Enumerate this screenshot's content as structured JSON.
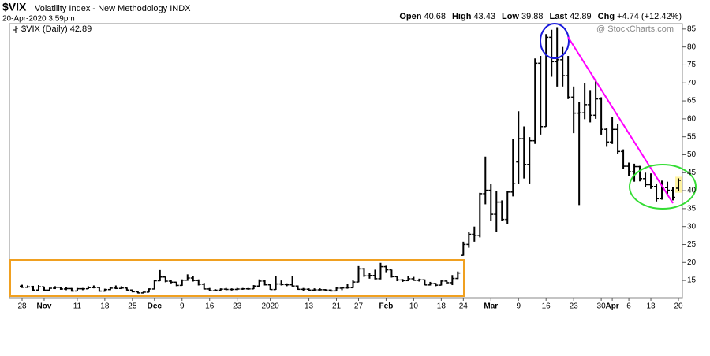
{
  "chart_data": {
    "type": "ohlc",
    "symbol": "$VIX",
    "title": "Volatility Index - New Methodology INDX",
    "date": "20-Apr-2020 3:59pm",
    "quote": [
      {
        "label": "Open",
        "value": "40.68"
      },
      {
        "label": "High",
        "value": "43.43"
      },
      {
        "label": "Low",
        "value": "39.88"
      },
      {
        "label": "Last",
        "value": "42.89"
      },
      {
        "label": "Chg",
        "value": "+4.74 (+12.42%)"
      }
    ],
    "legend": "$VIX (Daily) 42.89",
    "watermark": "@ StockCharts.com",
    "color": "#000000",
    "categories": [
      "28",
      null,
      null,
      null,
      "Nov",
      null,
      null,
      null,
      null,
      null,
      "11",
      null,
      null,
      null,
      null,
      "18",
      null,
      null,
      null,
      null,
      "25",
      null,
      null,
      null,
      "Dec",
      null,
      null,
      null,
      null,
      "9",
      null,
      null,
      null,
      null,
      "16",
      null,
      null,
      null,
      null,
      "23",
      null,
      null,
      null,
      null,
      null,
      "2020",
      null,
      null,
      null,
      null,
      null,
      null,
      "13",
      null,
      null,
      null,
      null,
      "21",
      null,
      null,
      null,
      "27",
      null,
      null,
      null,
      null,
      "Feb",
      null,
      null,
      null,
      null,
      "10",
      null,
      null,
      null,
      null,
      "18",
      null,
      null,
      null,
      "24",
      null,
      null,
      null,
      null,
      "Mar",
      null,
      null,
      null,
      null,
      "9",
      null,
      null,
      null,
      null,
      "16",
      null,
      null,
      null,
      null,
      "23",
      null,
      null,
      null,
      null,
      "30",
      null,
      "Apr",
      null,
      null,
      "6",
      null,
      null,
      null,
      "13",
      null,
      null,
      null,
      null,
      "20"
    ],
    "open": [
      13.4,
      13.11,
      13.2,
      12.33,
      13.22,
      12.3,
      12.83,
      13.1,
      12.62,
      12.73,
      12.07,
      12.69,
      12.68,
      13.0,
      13.05,
      12.05,
      12.46,
      12.86,
      12.78,
      12.9,
      12.34,
      11.87,
      11.54,
      11.75,
      12.62,
      14.91,
      15.96,
      14.8,
      14.52,
      13.62,
      15.08,
      15.68,
      14.99,
      13.94,
      12.63,
      12.14,
      12.29,
      12.58,
      12.5,
      12.51,
      12.61,
      12.67,
      12.65,
      13.43,
      14.82,
      13.78,
      12.47,
      14.02,
      13.85,
      13.79,
      13.45,
      12.54,
      12.56,
      12.32,
      12.39,
      12.42,
      12.32,
      12.1,
      12.85,
      12.91,
      12.98,
      14.56,
      18.23,
      16.28,
      16.39,
      15.49,
      18.84,
      17.97,
      16.05,
      15.15,
      14.96,
      15.47,
      15.04,
      15.18,
      13.74,
      14.15,
      13.68,
      14.83,
      14.38,
      15.56,
      22.0,
      25.03,
      27.85,
      27.56,
      39.16,
      40.11,
      33.42,
      36.82,
      31.99,
      39.62,
      48.0,
      54.46,
      47.3,
      53.9,
      75.47,
      57.83,
      82.69,
      75.91,
      76.45,
      72.0,
      66.04,
      61.59,
      61.67,
      63.95,
      61.0,
      65.54,
      57.08,
      53.54,
      57.06,
      50.91,
      46.8,
      45.24,
      46.7,
      43.35,
      41.67,
      41.17,
      37.76,
      40.84,
      40.11,
      40.68
    ],
    "high": [
      13.8,
      13.6,
      13.5,
      13.7,
      13.3,
      13.0,
      13.4,
      13.2,
      13.1,
      12.9,
      12.9,
      12.9,
      13.4,
      13.6,
      13.1,
      12.7,
      13.2,
      13.6,
      13.4,
      13.0,
      12.5,
      12.0,
      11.9,
      12.8,
      15.2,
      17.9,
      16.0,
      15.1,
      14.6,
      15.3,
      16.7,
      16.2,
      15.3,
      14.3,
      12.9,
      12.6,
      12.8,
      12.9,
      12.8,
      12.9,
      12.9,
      12.9,
      13.7,
      15.3,
      15.1,
      13.9,
      16.2,
      15.0,
      14.2,
      16.2,
      13.6,
      12.9,
      12.8,
      12.8,
      12.8,
      12.6,
      12.5,
      13.2,
      13.1,
      14.1,
      15.0,
      19.0,
      18.5,
      17.0,
      18.0,
      19.9,
      19.1,
      18.0,
      16.1,
      15.4,
      16.2,
      16.0,
      15.5,
      15.3,
      14.6,
      14.3,
      15.0,
      14.9,
      16.5,
      17.5,
      25.8,
      28.5,
      30.0,
      39.4,
      49.5,
      41.9,
      39.9,
      37.3,
      40.0,
      54.4,
      62.1,
      57.9,
      54.9,
      76.8,
      77.5,
      83.6,
      84.8,
      85.5,
      80.0,
      77.5,
      69.0,
      64.8,
      69.9,
      68.0,
      71.0,
      66.0,
      57.5,
      60.6,
      58.5,
      51.5,
      47.8,
      47.5,
      46.9,
      45.0,
      44.8,
      42.0,
      42.8,
      42.5,
      41.0,
      43.43
    ],
    "low": [
      12.9,
      12.9,
      12.1,
      12.2,
      12.1,
      12.2,
      12.6,
      12.4,
      12.3,
      11.9,
      12.0,
      12.3,
      12.6,
      12.8,
      11.9,
      11.9,
      12.3,
      12.6,
      12.6,
      12.2,
      11.7,
      11.4,
      11.4,
      11.7,
      12.5,
      14.8,
      14.5,
      14.2,
      13.4,
      13.5,
      14.9,
      14.7,
      13.6,
      12.5,
      12.0,
      12.0,
      12.1,
      12.3,
      12.2,
      12.3,
      12.4,
      12.4,
      12.6,
      13.3,
      13.6,
      12.4,
      12.4,
      13.6,
      13.4,
      13.3,
      12.4,
      12.1,
      12.2,
      12.1,
      12.2,
      12.1,
      11.9,
      12.0,
      12.3,
      12.7,
      12.9,
      14.5,
      16.0,
      15.5,
      15.3,
      15.3,
      17.3,
      15.8,
      14.8,
      14.6,
      14.8,
      14.9,
      14.7,
      13.7,
      13.6,
      13.4,
      13.6,
      14.0,
      13.7,
      15.4,
      21.9,
      24.1,
      25.8,
      27.0,
      36.2,
      31.6,
      28.6,
      31.6,
      30.8,
      38.4,
      41.9,
      43.4,
      42.0,
      53.0,
      55.6,
      57.8,
      71.7,
      69.0,
      69.0,
      65.5,
      56.0,
      36.0,
      59.9,
      59.0,
      60.0,
      55.6,
      52.2,
      53.0,
      50.2,
      46.0,
      44.0,
      42.5,
      42.6,
      41.0,
      40.5,
      37.0,
      37.5,
      38.5,
      37.3,
      39.88
    ],
    "close": [
      13.11,
      13.2,
      12.33,
      13.22,
      12.3,
      12.83,
      13.1,
      12.62,
      12.73,
      12.07,
      12.69,
      12.68,
      13.0,
      13.05,
      12.05,
      12.46,
      12.86,
      12.78,
      12.9,
      12.34,
      11.87,
      11.54,
      11.75,
      12.62,
      14.91,
      15.96,
      14.8,
      14.52,
      13.62,
      15.08,
      15.68,
      14.99,
      13.94,
      12.63,
      12.14,
      12.29,
      12.58,
      12.5,
      12.51,
      12.61,
      12.67,
      12.65,
      13.43,
      14.82,
      13.78,
      12.47,
      14.02,
      13.85,
      13.79,
      13.45,
      12.54,
      12.56,
      12.32,
      12.39,
      12.42,
      12.32,
      12.1,
      12.85,
      12.91,
      12.98,
      14.56,
      18.23,
      16.28,
      16.39,
      15.49,
      18.84,
      17.97,
      16.05,
      15.15,
      14.96,
      15.47,
      15.04,
      15.18,
      13.74,
      14.15,
      13.68,
      14.83,
      14.38,
      15.56,
      17.08,
      25.03,
      27.85,
      27.56,
      39.16,
      40.11,
      33.42,
      36.82,
      31.99,
      39.62,
      41.94,
      54.46,
      47.3,
      53.9,
      75.47,
      57.83,
      82.69,
      75.91,
      76.45,
      72.0,
      66.04,
      61.59,
      61.67,
      63.95,
      61.0,
      65.54,
      57.08,
      53.54,
      57.06,
      50.91,
      46.8,
      45.24,
      46.7,
      43.35,
      41.67,
      41.17,
      37.76,
      40.84,
      40.11,
      38.15,
      42.89
    ],
    "ylim": [
      10.2,
      86.5
    ],
    "yticks": [
      15,
      20,
      25,
      30,
      35,
      40,
      45,
      50,
      55,
      60,
      65,
      70,
      75,
      80,
      85
    ],
    "grid": false
  }
}
